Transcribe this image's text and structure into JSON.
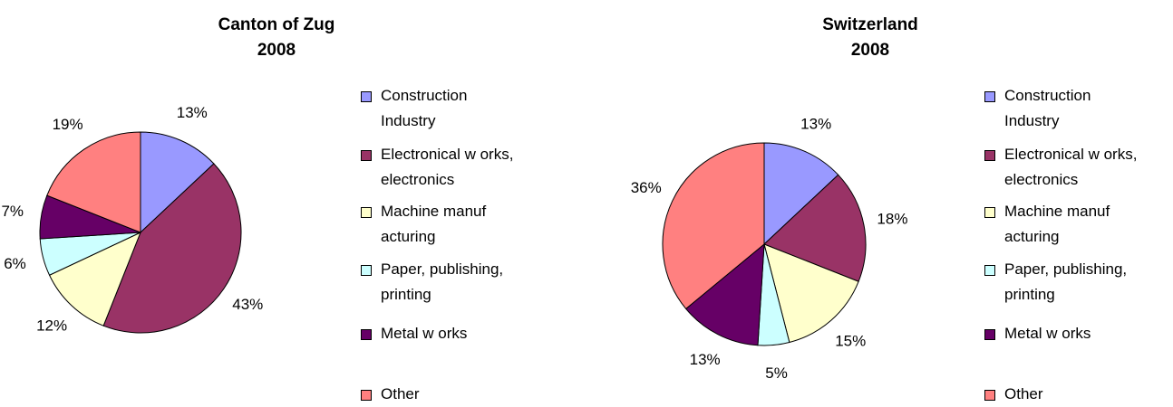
{
  "chart_data": [
    {
      "type": "pie",
      "title": "Canton of Zug",
      "subtitle": "2008",
      "categories": [
        "Construction Industry",
        "Electronical w orks, electronics",
        "Machine manuf acturing",
        "Paper, publishing, printing",
        "Metal w orks",
        "Other"
      ],
      "values": [
        13,
        43,
        12,
        6,
        7,
        19
      ],
      "value_labels": [
        "13%",
        "43%",
        "12%",
        "6%",
        "7%",
        "19%"
      ],
      "colors": [
        "#9999ff",
        "#993366",
        "#ffffcc",
        "#ccffff",
        "#660066",
        "#ff8080"
      ]
    },
    {
      "type": "pie",
      "title": "Switzerland",
      "subtitle": "2008",
      "categories": [
        "Construction Industry",
        "Electronical w orks, electronics",
        "Machine manuf acturing",
        "Paper, publishing, printing",
        "Metal w orks",
        "Other"
      ],
      "values": [
        13,
        18,
        15,
        5,
        13,
        36
      ],
      "value_labels": [
        "13%",
        "18%",
        "15%",
        "5%",
        "13%",
        "36%"
      ],
      "colors": [
        "#9999ff",
        "#993366",
        "#ffffcc",
        "#ccffff",
        "#660066",
        "#ff8080"
      ]
    }
  ]
}
